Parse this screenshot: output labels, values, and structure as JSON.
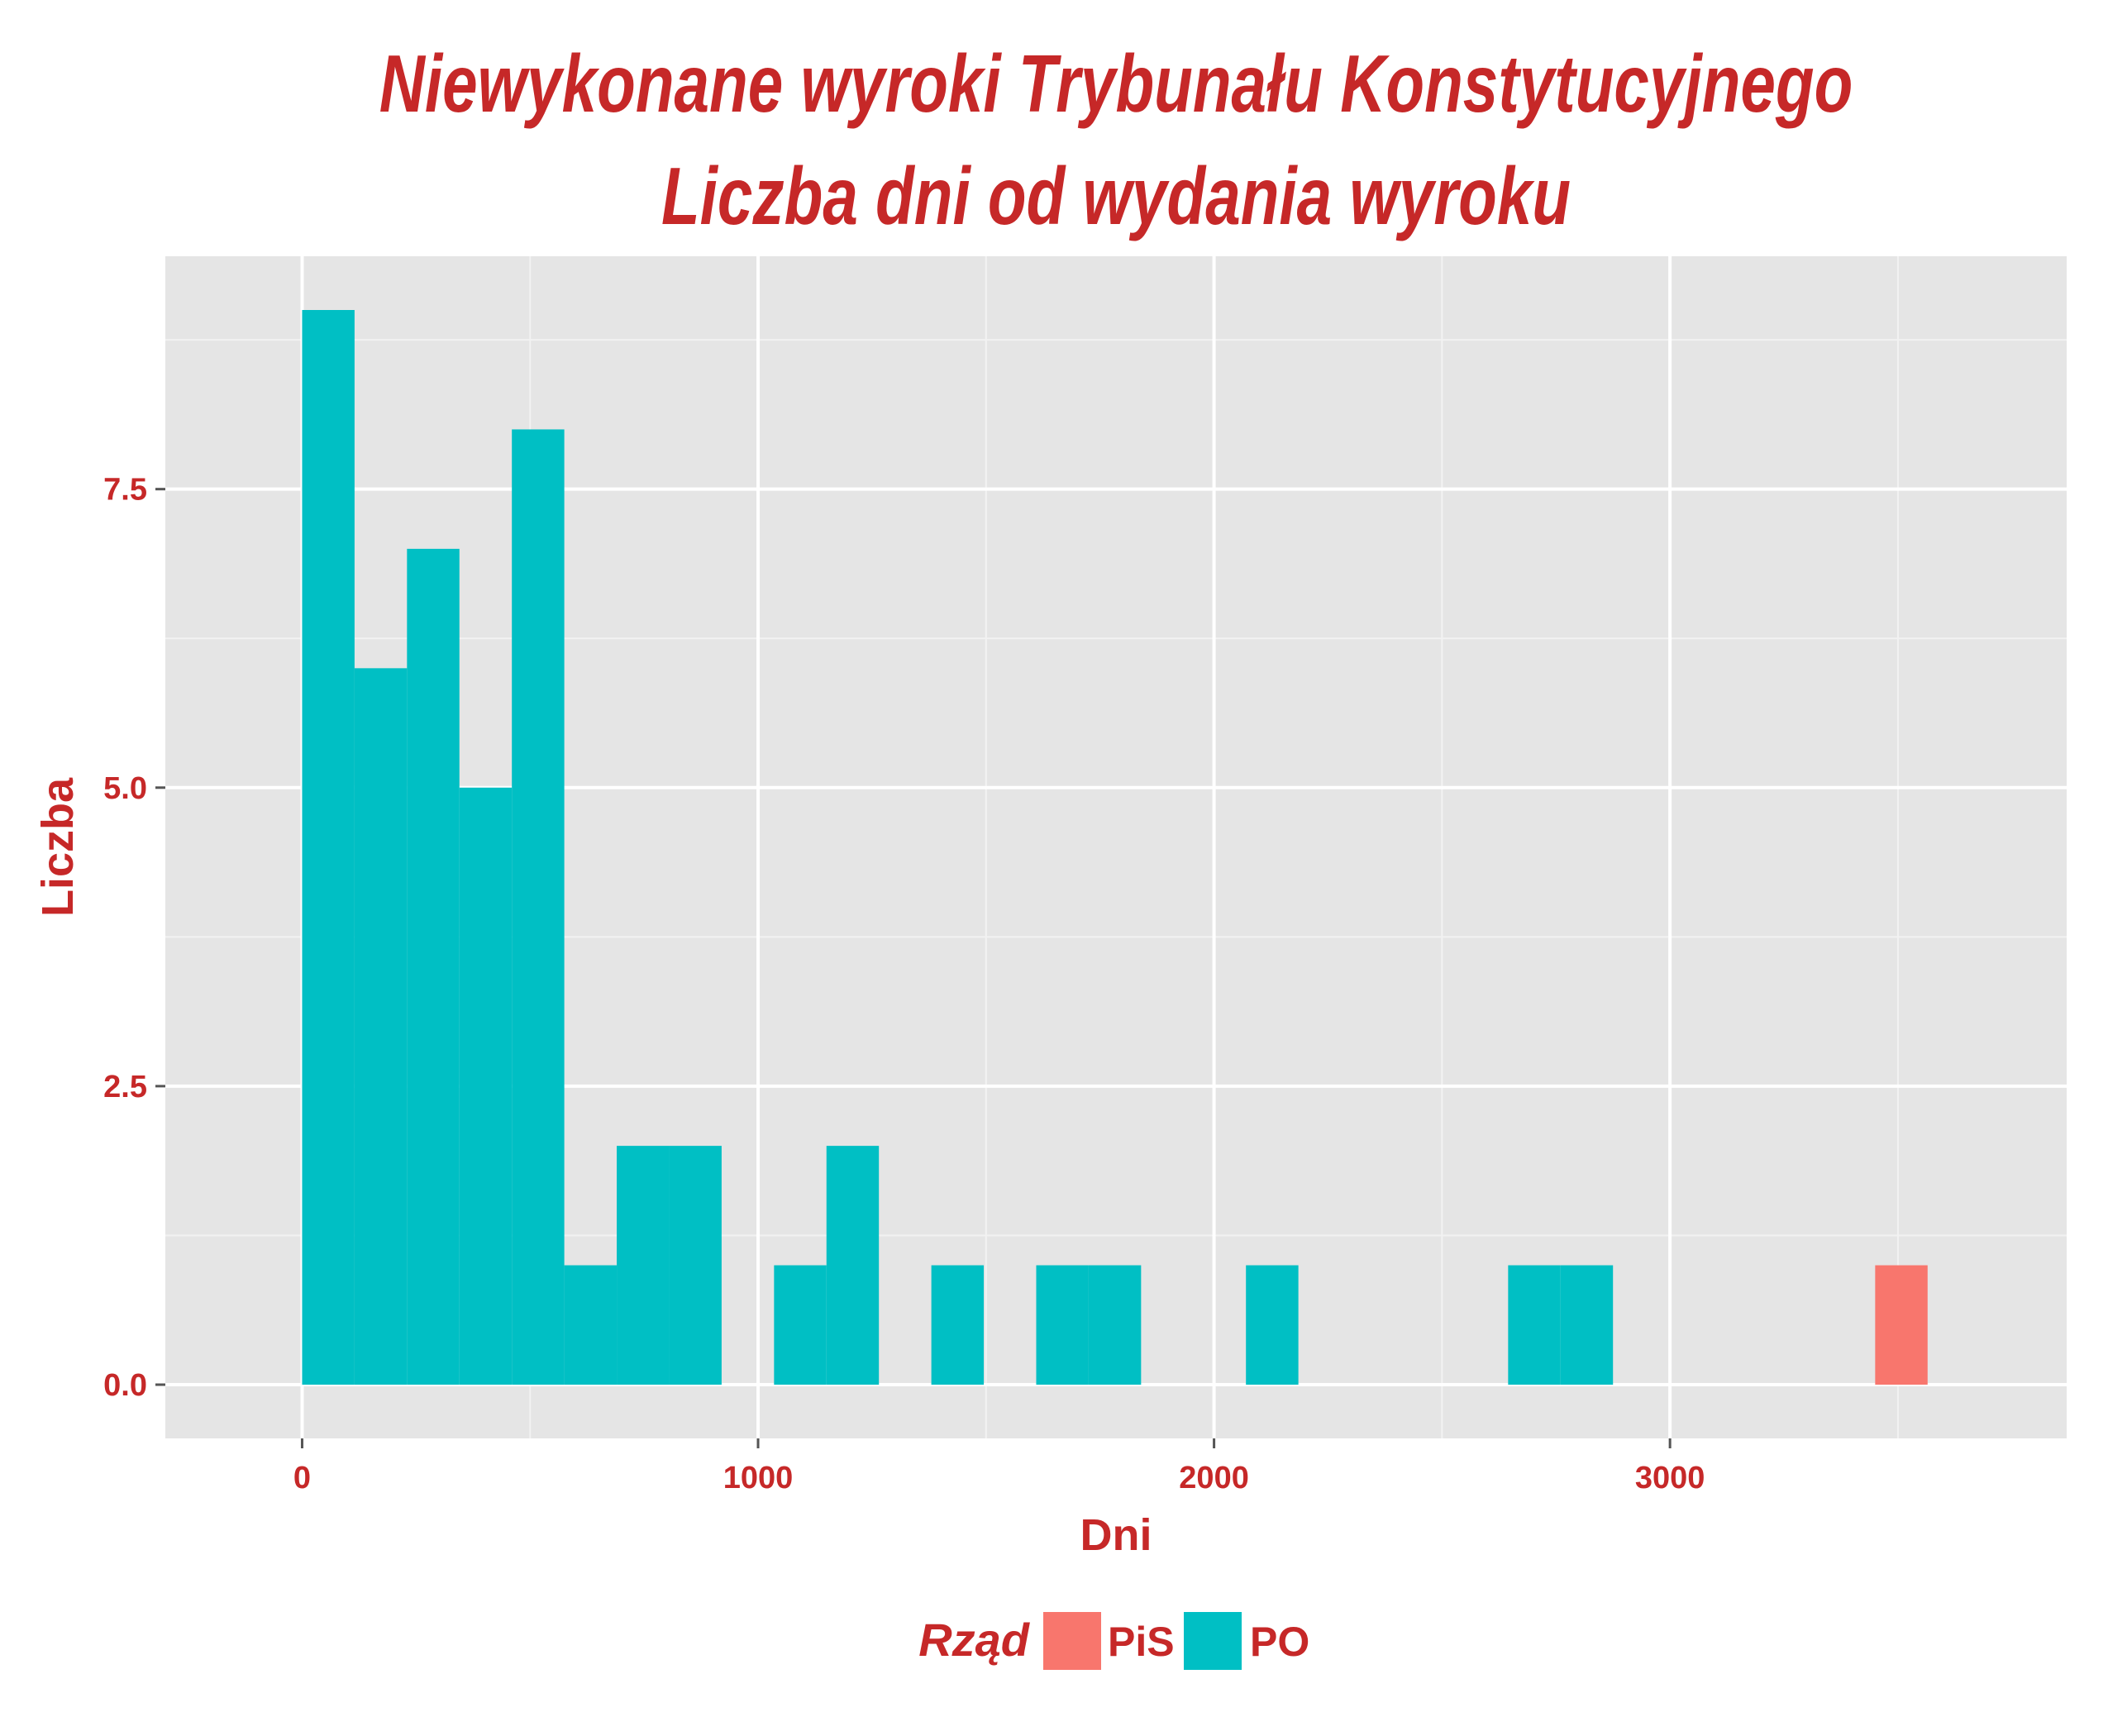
{
  "chart_data": {
    "type": "bar",
    "title": "Niewykonane wyroki Trybunału Konstytucyjnego",
    "subtitle": "Liczba dni od wydania wyroku",
    "xlabel": "Dni",
    "ylabel": "Liczba",
    "xlim": [
      -300,
      3870
    ],
    "ylim": [
      -0.45,
      9.45
    ],
    "xticks": [
      0,
      1000,
      2000,
      3000
    ],
    "xtick_labels": [
      "0",
      "1000",
      "2000",
      "3000"
    ],
    "yticks": [
      0,
      2.5,
      5,
      7.5
    ],
    "ytick_labels": [
      "0.0",
      "2.5",
      "5.0",
      "7.5"
    ],
    "bin_width": 115,
    "grid": true,
    "legend": {
      "title": "Rząd",
      "position": "bottom",
      "items": [
        {
          "label": "PiS",
          "color": "#F8766D"
        },
        {
          "label": "PO",
          "color": "#00BFC4"
        }
      ]
    },
    "series": [
      {
        "name": "PO",
        "color": "#00BFC4",
        "bins": [
          {
            "x0": 0,
            "x1": 115,
            "count": 9
          },
          {
            "x0": 115,
            "x1": 230,
            "count": 6
          },
          {
            "x0": 230,
            "x1": 345,
            "count": 7
          },
          {
            "x0": 345,
            "x1": 460,
            "count": 5
          },
          {
            "x0": 460,
            "x1": 575,
            "count": 8
          },
          {
            "x0": 575,
            "x1": 690,
            "count": 1
          },
          {
            "x0": 690,
            "x1": 805,
            "count": 2
          },
          {
            "x0": 805,
            "x1": 920,
            "count": 2
          },
          {
            "x0": 1035,
            "x1": 1150,
            "count": 1
          },
          {
            "x0": 1150,
            "x1": 1265,
            "count": 2
          },
          {
            "x0": 1380,
            "x1": 1495,
            "count": 1
          },
          {
            "x0": 1610,
            "x1": 1725,
            "count": 1
          },
          {
            "x0": 1725,
            "x1": 1840,
            "count": 1
          },
          {
            "x0": 2070,
            "x1": 2185,
            "count": 1
          },
          {
            "x0": 2645,
            "x1": 2760,
            "count": 1
          },
          {
            "x0": 2760,
            "x1": 2875,
            "count": 1
          }
        ]
      },
      {
        "name": "PiS",
        "color": "#F8766D",
        "bins": [
          {
            "x0": 3450,
            "x1": 3565,
            "count": 1
          }
        ]
      }
    ]
  }
}
